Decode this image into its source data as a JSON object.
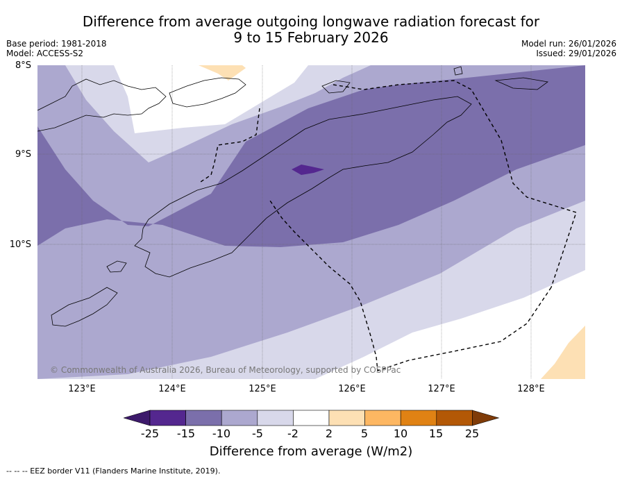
{
  "title": {
    "line1": "Difference from average outgoing longwave radiation forecast for",
    "line2": "9 to 15 February 2026"
  },
  "meta": {
    "base_period": "Base period: 1981-2018",
    "model": "Model: ACCESS-S2",
    "model_run": "Model run: 26/01/2026",
    "issued": "Issued: 29/01/2026"
  },
  "map": {
    "lat_labels": [
      "8°S",
      "9°S",
      "10°S"
    ],
    "lon_labels": [
      "123°E",
      "124°E",
      "125°E",
      "126°E",
      "127°E",
      "128°E"
    ],
    "copyright": "© Commonwealth of Australia 2026, Bureau of Meteorology, supported by COSPPac"
  },
  "colorbar": {
    "ticks": [
      "-25",
      "-15",
      "-10",
      "-5",
      "-2",
      "2",
      "5",
      "10",
      "15",
      "25"
    ],
    "colors": [
      "#3d1a6b",
      "#54278f",
      "#7b6fab",
      "#aca8cf",
      "#d8d8ea",
      "#ffffff",
      "#fde0b4",
      "#fdb762",
      "#e08214",
      "#b35806",
      "#7f3b08"
    ],
    "label": "Difference from average (W/m2)"
  },
  "legend": {
    "eez": "--  --  -- EEZ border V11 (Flanders Marine Institute, 2019)."
  }
}
